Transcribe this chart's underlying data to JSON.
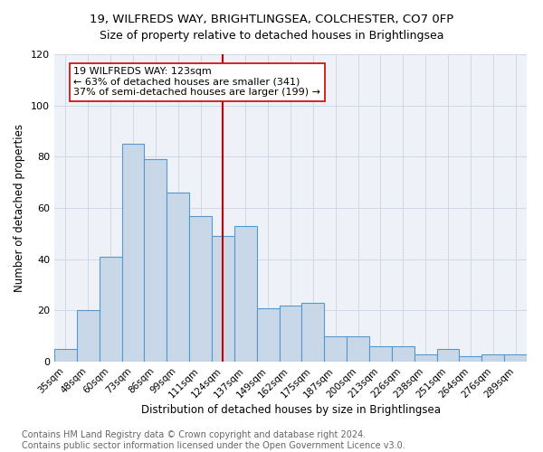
{
  "title": "19, WILFREDS WAY, BRIGHTLINGSEA, COLCHESTER, CO7 0FP",
  "subtitle": "Size of property relative to detached houses in Brightlingsea",
  "xlabel": "Distribution of detached houses by size in Brightlingsea",
  "ylabel": "Number of detached properties",
  "categories": [
    "35sqm",
    "48sqm",
    "60sqm",
    "73sqm",
    "86sqm",
    "99sqm",
    "111sqm",
    "124sqm",
    "137sqm",
    "149sqm",
    "162sqm",
    "175sqm",
    "187sqm",
    "200sqm",
    "213sqm",
    "226sqm",
    "238sqm",
    "251sqm",
    "264sqm",
    "276sqm",
    "289sqm"
  ],
  "values": [
    5,
    20,
    41,
    85,
    79,
    66,
    57,
    49,
    53,
    21,
    22,
    23,
    10,
    10,
    6,
    6,
    3,
    5,
    2,
    3,
    3
  ],
  "bar_color": "#c8d8e8",
  "bar_edge_color": "#5599cc",
  "vline_x_index": 7,
  "vline_color": "#cc0000",
  "annotation_line1": "19 WILFREDS WAY: 123sqm",
  "annotation_line2": "← 63% of detached houses are smaller (341)",
  "annotation_line3": "37% of semi-detached houses are larger (199) →",
  "annotation_box_color": "#cc0000",
  "ylim": [
    0,
    120
  ],
  "yticks": [
    0,
    20,
    40,
    60,
    80,
    100,
    120
  ],
  "grid_color": "#d0d8e8",
  "background_color": "#eef2f8",
  "footer": "Contains HM Land Registry data © Crown copyright and database right 2024.\nContains public sector information licensed under the Open Government Licence v3.0.",
  "title_fontsize": 9.5,
  "subtitle_fontsize": 9,
  "xlabel_fontsize": 8.5,
  "ylabel_fontsize": 8.5,
  "annotation_fontsize": 8,
  "tick_fontsize": 7.5,
  "ytick_fontsize": 8,
  "footer_fontsize": 7
}
